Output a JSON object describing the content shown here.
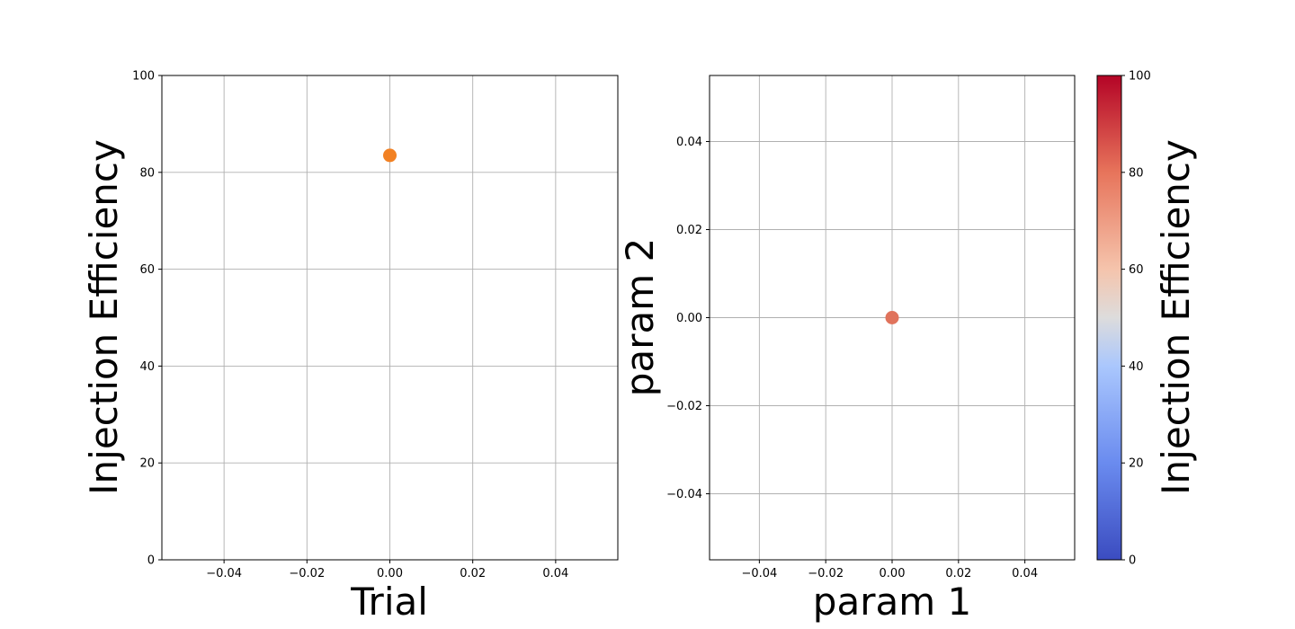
{
  "chart_data": [
    {
      "type": "scatter",
      "xlabel": "Trial",
      "ylabel": "Injection Efficiency",
      "xlim": [
        -0.055,
        0.055
      ],
      "ylim": [
        0,
        100
      ],
      "xticks": [
        "−0.04",
        "−0.02",
        "0.00",
        "0.02",
        "0.04"
      ],
      "xtick_values": [
        -0.04,
        -0.02,
        0,
        0.02,
        0.04
      ],
      "yticks": [
        "0",
        "20",
        "40",
        "60",
        "80",
        "100"
      ],
      "ytick_values": [
        0,
        20,
        40,
        60,
        80,
        100
      ],
      "grid": true,
      "points": [
        {
          "x": 0,
          "y": 83.5
        }
      ],
      "marker_color": "#f28123"
    },
    {
      "type": "scatter",
      "xlabel": "param 1",
      "ylabel": "param 2",
      "xlim": [
        -0.055,
        0.055
      ],
      "ylim": [
        -0.055,
        0.055
      ],
      "xticks": [
        "−0.04",
        "−0.02",
        "0.00",
        "0.02",
        "0.04"
      ],
      "xtick_values": [
        -0.04,
        -0.02,
        0,
        0.02,
        0.04
      ],
      "yticks": [
        "−0.04",
        "−0.02",
        "0.00",
        "0.02",
        "0.04"
      ],
      "ytick_values": [
        -0.04,
        -0.02,
        0,
        0.02,
        0.04
      ],
      "grid": true,
      "points": [
        {
          "x": 0,
          "y": 0,
          "value": 83.5
        }
      ],
      "marker_color": "#e0735c",
      "colorbar": {
        "label": "Injection Efficiency",
        "colormap": "coolwarm",
        "range": [
          0,
          100
        ],
        "ticks": [
          "0",
          "20",
          "40",
          "60",
          "80",
          "100"
        ],
        "tick_values": [
          0,
          20,
          40,
          60,
          80,
          100
        ]
      }
    }
  ]
}
